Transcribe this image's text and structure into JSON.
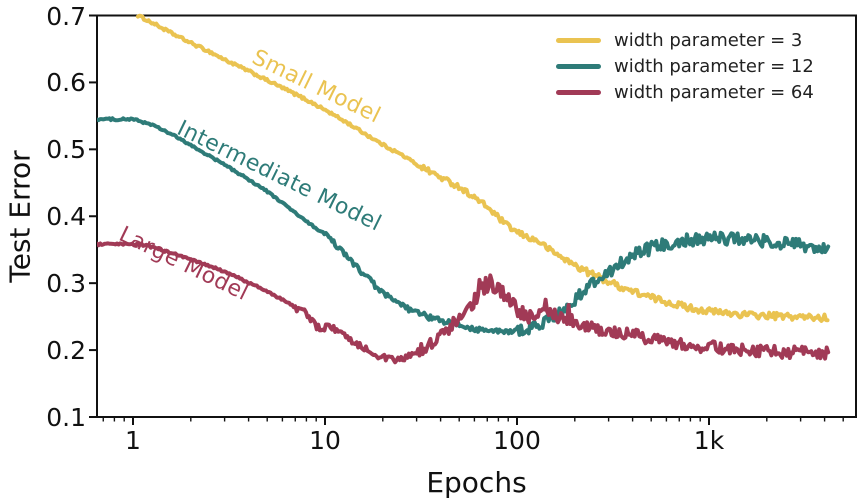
{
  "chart_data": {
    "type": "line",
    "title": "",
    "xlabel": "Epochs",
    "ylabel": "Test Error",
    "x_scale": "log",
    "grid": false,
    "xlim": [
      0.65,
      5800
    ],
    "ylim": [
      0.1,
      0.7
    ],
    "x_ticks": [
      {
        "value": 1,
        "label": "1"
      },
      {
        "value": 10,
        "label": "10"
      },
      {
        "value": 100,
        "label": "100"
      },
      {
        "value": 1000,
        "label": "1k"
      }
    ],
    "x_minor_ticks": [
      0.7,
      0.8,
      0.9,
      2,
      3,
      4,
      5,
      6,
      7,
      8,
      9,
      20,
      30,
      40,
      50,
      60,
      70,
      80,
      90,
      200,
      300,
      400,
      500,
      600,
      700,
      800,
      900,
      2000,
      3000,
      4000,
      5000
    ],
    "y_ticks": [
      {
        "value": 0.1,
        "label": "0.1"
      },
      {
        "value": 0.2,
        "label": "0.2"
      },
      {
        "value": 0.3,
        "label": "0.3"
      },
      {
        "value": 0.4,
        "label": "0.4"
      },
      {
        "value": 0.5,
        "label": "0.5"
      },
      {
        "value": 0.6,
        "label": "0.6"
      },
      {
        "value": 0.7,
        "label": "0.7"
      }
    ],
    "legend": {
      "position": "upper right"
    },
    "series": [
      {
        "name": "small-model",
        "legend_label": "width parameter = 3",
        "curve_label": "Small Model",
        "color": "#eac351",
        "points": [
          [
            1.06,
            0.7
          ],
          [
            1.3,
            0.687
          ],
          [
            1.6,
            0.673
          ],
          [
            2,
            0.659
          ],
          [
            2.5,
            0.646
          ],
          [
            3,
            0.634
          ],
          [
            4,
            0.617
          ],
          [
            5,
            0.603
          ],
          [
            6,
            0.592
          ],
          [
            8,
            0.574
          ],
          [
            10,
            0.559
          ],
          [
            13,
            0.54
          ],
          [
            16,
            0.524
          ],
          [
            20,
            0.507
          ],
          [
            25,
            0.492
          ],
          [
            30,
            0.478
          ],
          [
            40,
            0.458
          ],
          [
            50,
            0.444
          ],
          [
            60,
            0.428
          ],
          [
            70,
            0.414
          ],
          [
            80,
            0.398
          ],
          [
            90,
            0.385
          ],
          [
            100,
            0.376
          ],
          [
            115,
            0.368
          ],
          [
            130,
            0.362
          ],
          [
            150,
            0.349
          ],
          [
            170,
            0.339
          ],
          [
            200,
            0.327
          ],
          [
            240,
            0.315
          ],
          [
            280,
            0.306
          ],
          [
            330,
            0.297
          ],
          [
            400,
            0.288
          ],
          [
            480,
            0.28
          ],
          [
            570,
            0.274
          ],
          [
            680,
            0.268
          ],
          [
            800,
            0.263
          ],
          [
            950,
            0.259
          ],
          [
            1150,
            0.256
          ],
          [
            1400,
            0.254
          ],
          [
            1700,
            0.252
          ],
          [
            2100,
            0.251
          ],
          [
            2600,
            0.25
          ],
          [
            3200,
            0.249
          ],
          [
            4200,
            0.248
          ]
        ],
        "noise": [
          [
            1,
            30,
            0.002
          ],
          [
            30,
            200,
            0.004
          ],
          [
            200,
            4200,
            0.005
          ]
        ]
      },
      {
        "name": "intermediate-model",
        "legend_label": "width parameter = 12",
        "curve_label": "Intermediate Model",
        "color": "#2e7b78",
        "points": [
          [
            0.65,
            0.545
          ],
          [
            1,
            0.545
          ],
          [
            1.25,
            0.537
          ],
          [
            1.6,
            0.522
          ],
          [
            2,
            0.506
          ],
          [
            2.5,
            0.49
          ],
          [
            3,
            0.477
          ],
          [
            3.5,
            0.465
          ],
          [
            4,
            0.455
          ],
          [
            5,
            0.437
          ],
          [
            6,
            0.42
          ],
          [
            7,
            0.405
          ],
          [
            8,
            0.392
          ],
          [
            9,
            0.382
          ],
          [
            10,
            0.373
          ],
          [
            11,
            0.362
          ],
          [
            12,
            0.35
          ],
          [
            13,
            0.34
          ],
          [
            14,
            0.33
          ],
          [
            16,
            0.313
          ],
          [
            18,
            0.298
          ],
          [
            20,
            0.285
          ],
          [
            23,
            0.273
          ],
          [
            26,
            0.264
          ],
          [
            30,
            0.256
          ],
          [
            35,
            0.249
          ],
          [
            40,
            0.244
          ],
          [
            50,
            0.237
          ],
          [
            60,
            0.232
          ],
          [
            70,
            0.229
          ],
          [
            85,
            0.227
          ],
          [
            100,
            0.229
          ],
          [
            120,
            0.234
          ],
          [
            140,
            0.242
          ],
          [
            160,
            0.252
          ],
          [
            190,
            0.268
          ],
          [
            220,
            0.287
          ],
          [
            260,
            0.305
          ],
          [
            300,
            0.318
          ],
          [
            350,
            0.33
          ],
          [
            400,
            0.34
          ],
          [
            470,
            0.349
          ],
          [
            550,
            0.356
          ],
          [
            650,
            0.361
          ],
          [
            800,
            0.365
          ],
          [
            1000,
            0.367
          ],
          [
            1300,
            0.367
          ],
          [
            1700,
            0.365
          ],
          [
            2200,
            0.361
          ],
          [
            2800,
            0.357
          ],
          [
            3400,
            0.353
          ],
          [
            4200,
            0.349
          ]
        ],
        "noise": [
          [
            0.65,
            10,
            0.0015
          ],
          [
            10,
            100,
            0.004
          ],
          [
            100,
            300,
            0.008
          ],
          [
            300,
            4200,
            0.01
          ]
        ]
      },
      {
        "name": "large-model",
        "legend_label": "width parameter = 64",
        "curve_label": "Large Model",
        "color": "#a13a56",
        "points": [
          [
            0.65,
            0.358
          ],
          [
            1.1,
            0.358
          ],
          [
            1.4,
            0.35
          ],
          [
            1.8,
            0.34
          ],
          [
            2.2,
            0.331
          ],
          [
            2.7,
            0.322
          ],
          [
            3.3,
            0.312
          ],
          [
            4,
            0.301
          ],
          [
            4.8,
            0.29
          ],
          [
            5.6,
            0.28
          ],
          [
            6.5,
            0.27
          ],
          [
            7.2,
            0.262
          ],
          [
            7.8,
            0.258
          ],
          [
            8.3,
            0.246
          ],
          [
            9,
            0.236
          ],
          [
            9.7,
            0.232
          ],
          [
            10.5,
            0.237
          ],
          [
            11.5,
            0.228
          ],
          [
            12.5,
            0.222
          ],
          [
            14,
            0.213
          ],
          [
            15.5,
            0.206
          ],
          [
            17,
            0.199
          ],
          [
            19,
            0.192
          ],
          [
            21,
            0.187
          ],
          [
            23,
            0.184
          ],
          [
            25,
            0.186
          ],
          [
            27,
            0.19
          ],
          [
            30,
            0.197
          ],
          [
            33,
            0.203
          ],
          [
            36,
            0.21
          ],
          [
            40,
            0.222
          ],
          [
            44,
            0.232
          ],
          [
            48,
            0.243
          ],
          [
            52,
            0.253
          ],
          [
            57,
            0.266
          ],
          [
            62,
            0.28
          ],
          [
            66,
            0.291
          ],
          [
            70,
            0.297
          ],
          [
            74,
            0.299
          ],
          [
            78,
            0.293
          ],
          [
            83,
            0.284
          ],
          [
            90,
            0.274
          ],
          [
            100,
            0.262
          ],
          [
            110,
            0.254
          ],
          [
            120,
            0.248
          ],
          [
            135,
            0.252
          ],
          [
            150,
            0.257
          ],
          [
            165,
            0.251
          ],
          [
            180,
            0.245
          ],
          [
            200,
            0.24
          ],
          [
            230,
            0.235
          ],
          [
            270,
            0.23
          ],
          [
            320,
            0.227
          ],
          [
            387,
            0.224
          ],
          [
            450,
            0.22
          ],
          [
            550,
            0.215
          ],
          [
            700,
            0.21
          ],
          [
            900,
            0.206
          ],
          [
            1200,
            0.203
          ],
          [
            1600,
            0.2
          ],
          [
            2100,
            0.198
          ],
          [
            2700,
            0.197
          ],
          [
            3400,
            0.196
          ],
          [
            4200,
            0.195
          ]
        ],
        "noise": [
          [
            0.65,
            7,
            0.0015
          ],
          [
            7,
            30,
            0.005
          ],
          [
            30,
            50,
            0.009
          ],
          [
            50,
            95,
            0.014,
            1
          ],
          [
            95,
            200,
            0.011,
            1
          ],
          [
            200,
            900,
            0.009
          ],
          [
            900,
            4200,
            0.009
          ]
        ]
      }
    ]
  }
}
